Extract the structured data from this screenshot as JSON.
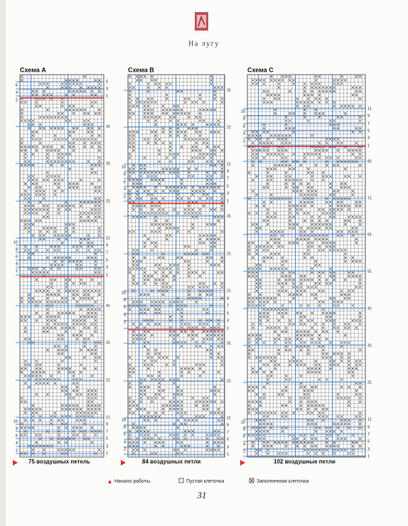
{
  "header": {
    "title": "На лугу"
  },
  "schemes": [
    {
      "title": "Схема A",
      "stitches": "75 воздушных петель",
      "left_rows": [
        "6",
        "4",
        "2",
        "10",
        "8",
        "6",
        "4",
        "2",
        "10",
        "8",
        "6",
        "4",
        "2"
      ],
      "right_rows": [
        "5",
        "3",
        "1",
        "41",
        "31",
        "21",
        "11",
        "9",
        "7",
        "5",
        "3",
        "1",
        "41",
        "31",
        "21",
        "11",
        "9",
        "7",
        "5",
        "3",
        "1"
      ]
    },
    {
      "title": "Схема B",
      "stitches": "84 воздушных петли",
      "left_rows": [
        "10",
        "8",
        "6",
        "4",
        "2",
        "10",
        "8",
        "6",
        "4",
        "2",
        "10",
        "8",
        "6",
        "4",
        "2"
      ],
      "right_rows": [
        "31",
        "21",
        "11",
        "9",
        "7",
        "5",
        "3",
        "1",
        "31",
        "21",
        "11",
        "9",
        "7",
        "5",
        "3",
        "1",
        "31",
        "21",
        "11",
        "9",
        "7",
        "5",
        "3",
        "1"
      ]
    },
    {
      "title": "Схема C",
      "stitches": "102 воздушные петли",
      "left_rows": [
        "10",
        "8",
        "6",
        "4",
        "2",
        "10",
        "8",
        "6",
        "4",
        "2"
      ],
      "right_rows": [
        "11",
        "9",
        "7",
        "5",
        "3",
        "1",
        "81",
        "71",
        "61",
        "51",
        "41",
        "31",
        "21",
        "11",
        "9",
        "7",
        "5",
        "3",
        "1"
      ]
    }
  ],
  "legend": [
    "Начало работы",
    "Пустая клеточка",
    "Заполненная клеточка"
  ],
  "page_number": "31"
}
